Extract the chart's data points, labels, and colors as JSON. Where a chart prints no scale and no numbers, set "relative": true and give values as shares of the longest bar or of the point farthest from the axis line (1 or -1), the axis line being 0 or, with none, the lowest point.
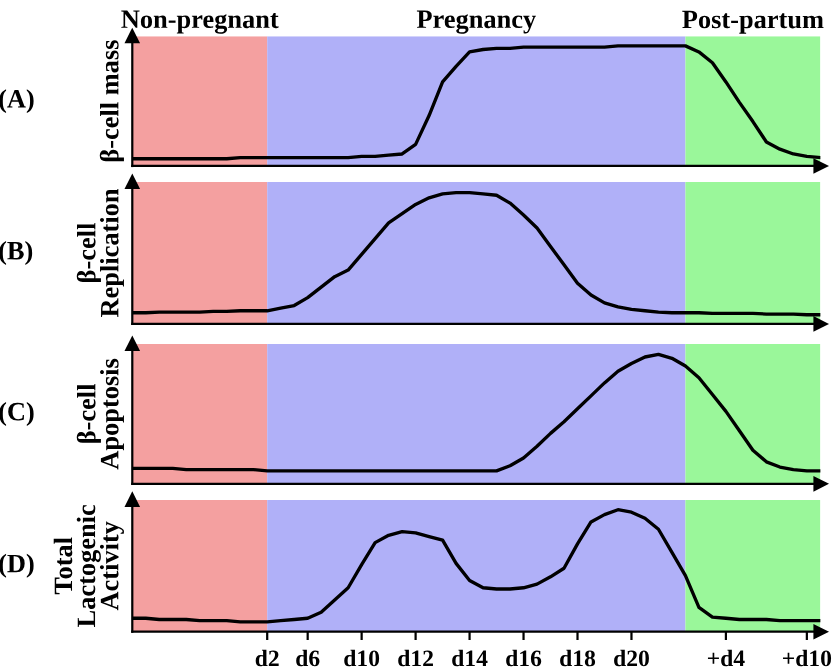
{
  "chart_data": [
    {
      "type": "line",
      "relative": true,
      "ylabel": "β-cell mass",
      "annotations": [
        "(A)",
        "Non-pregnant",
        "Pregnancy",
        "Post-partum"
      ],
      "tick_labels": false,
      "categories": [
        null,
        null,
        null,
        null,
        null,
        null,
        null,
        null,
        null,
        null,
        null,
        null,
        null,
        null,
        null,
        null,
        null,
        null,
        null,
        null,
        null,
        null,
        null,
        null,
        null,
        null,
        null,
        null,
        null,
        null,
        null,
        null,
        null,
        null,
        null,
        null,
        null,
        null,
        null,
        null,
        null,
        null,
        null,
        null,
        null,
        null,
        null,
        null,
        null,
        null,
        null,
        null
      ],
      "series": [
        {
          "color": "#000000",
          "values": [
            0.06,
            0.06,
            0.06,
            0.06,
            0.06,
            0.06,
            0.06,
            0.06,
            0.07,
            0.07,
            0.07,
            0.07,
            0.07,
            0.07,
            0.07,
            0.07,
            0.07,
            0.08,
            0.08,
            0.09,
            0.1,
            0.18,
            0.42,
            0.7,
            0.83,
            0.95,
            0.97,
            0.98,
            0.98,
            0.99,
            0.99,
            0.99,
            0.99,
            0.99,
            0.99,
            0.99,
            1,
            1,
            1,
            1,
            1,
            1,
            0.95,
            0.86,
            0.7,
            0.53,
            0.37,
            0.2,
            0.14,
            0.1,
            0.08,
            0.07
          ]
        }
      ]
    },
    {
      "type": "line",
      "relative": true,
      "ylabel": "β-cell\nReplication",
      "annotations": [
        "(B)"
      ],
      "tick_labels": false,
      "categories": [
        null,
        null,
        null,
        null,
        null,
        null,
        null,
        null,
        null,
        null,
        null,
        null,
        null,
        null,
        null,
        null,
        null,
        null,
        null,
        null,
        null,
        null,
        null,
        null,
        null,
        null,
        null,
        null,
        null,
        null,
        null,
        null,
        null,
        null,
        null,
        null,
        null,
        null,
        null,
        null,
        null,
        null,
        null,
        null,
        null,
        null,
        null,
        null,
        null,
        null,
        null,
        null
      ],
      "series": [
        {
          "color": "#000000",
          "values": [
            0.085,
            0.085,
            0.09,
            0.09,
            0.09,
            0.09,
            0.095,
            0.095,
            0.1,
            0.1,
            0.1,
            0.12,
            0.14,
            0.2,
            0.28,
            0.36,
            0.41,
            0.53,
            0.65,
            0.77,
            0.84,
            0.91,
            0.96,
            0.99,
            1,
            1,
            0.99,
            0.98,
            0.92,
            0.83,
            0.73,
            0.59,
            0.45,
            0.31,
            0.22,
            0.16,
            0.13,
            0.11,
            0.1,
            0.09,
            0.085,
            0.085,
            0.085,
            0.08,
            0.08,
            0.08,
            0.08,
            0.075,
            0.075,
            0.075,
            0.07,
            0.07
          ]
        }
      ]
    },
    {
      "type": "line",
      "relative": true,
      "ylabel": "β-cell\nApoptosis",
      "annotations": [
        "(C)"
      ],
      "tick_labels": false,
      "categories": [
        null,
        null,
        null,
        null,
        null,
        null,
        null,
        null,
        null,
        null,
        null,
        null,
        null,
        null,
        null,
        null,
        null,
        null,
        null,
        null,
        null,
        null,
        null,
        null,
        null,
        null,
        null,
        null,
        null,
        null,
        null,
        null,
        null,
        null,
        null,
        null,
        null,
        null,
        null,
        null,
        null,
        null,
        null,
        null,
        null,
        null,
        null,
        null,
        null,
        null,
        null,
        null
      ],
      "series": [
        {
          "color": "#000000",
          "values": [
            0.12,
            0.12,
            0.12,
            0.12,
            0.11,
            0.11,
            0.11,
            0.11,
            0.11,
            0.11,
            0.1,
            0.1,
            0.1,
            0.1,
            0.1,
            0.1,
            0.1,
            0.1,
            0.1,
            0.1,
            0.1,
            0.1,
            0.1,
            0.1,
            0.1,
            0.1,
            0.1,
            0.1,
            0.14,
            0.2,
            0.29,
            0.39,
            0.48,
            0.58,
            0.68,
            0.78,
            0.87,
            0.93,
            0.98,
            1,
            0.97,
            0.91,
            0.82,
            0.69,
            0.56,
            0.41,
            0.26,
            0.17,
            0.13,
            0.11,
            0.1,
            0.1
          ]
        }
      ]
    },
    {
      "type": "line",
      "relative": true,
      "ylabel": "Total\nLactogenic\nActivity",
      "annotations": [
        "(D)"
      ],
      "tick_labels": "x",
      "categories": [
        null,
        null,
        null,
        null,
        null,
        null,
        null,
        null,
        null,
        null,
        "d2",
        null,
        null,
        "d6",
        null,
        null,
        null,
        "d10",
        null,
        null,
        null,
        "d12",
        null,
        null,
        null,
        "d14",
        null,
        null,
        null,
        "d16",
        null,
        null,
        null,
        "d18",
        null,
        null,
        null,
        "d20",
        null,
        null,
        null,
        null,
        null,
        null,
        "+d4",
        null,
        null,
        null,
        null,
        null,
        "+d10",
        null
      ],
      "series": [
        {
          "color": "#000000",
          "values": [
            0.11,
            0.11,
            0.1,
            0.1,
            0.1,
            0.09,
            0.09,
            0.09,
            0.08,
            0.08,
            0.08,
            0.09,
            0.1,
            0.11,
            0.16,
            0.26,
            0.36,
            0.55,
            0.73,
            0.79,
            0.82,
            0.81,
            0.78,
            0.75,
            0.56,
            0.42,
            0.36,
            0.35,
            0.35,
            0.36,
            0.39,
            0.45,
            0.52,
            0.72,
            0.9,
            0.96,
            1,
            0.98,
            0.93,
            0.84,
            0.65,
            0.46,
            0.2,
            0.12,
            0.11,
            0.1,
            0.1,
            0.1,
            0.09,
            0.09,
            0.09,
            0.09
          ]
        }
      ]
    }
  ]
}
